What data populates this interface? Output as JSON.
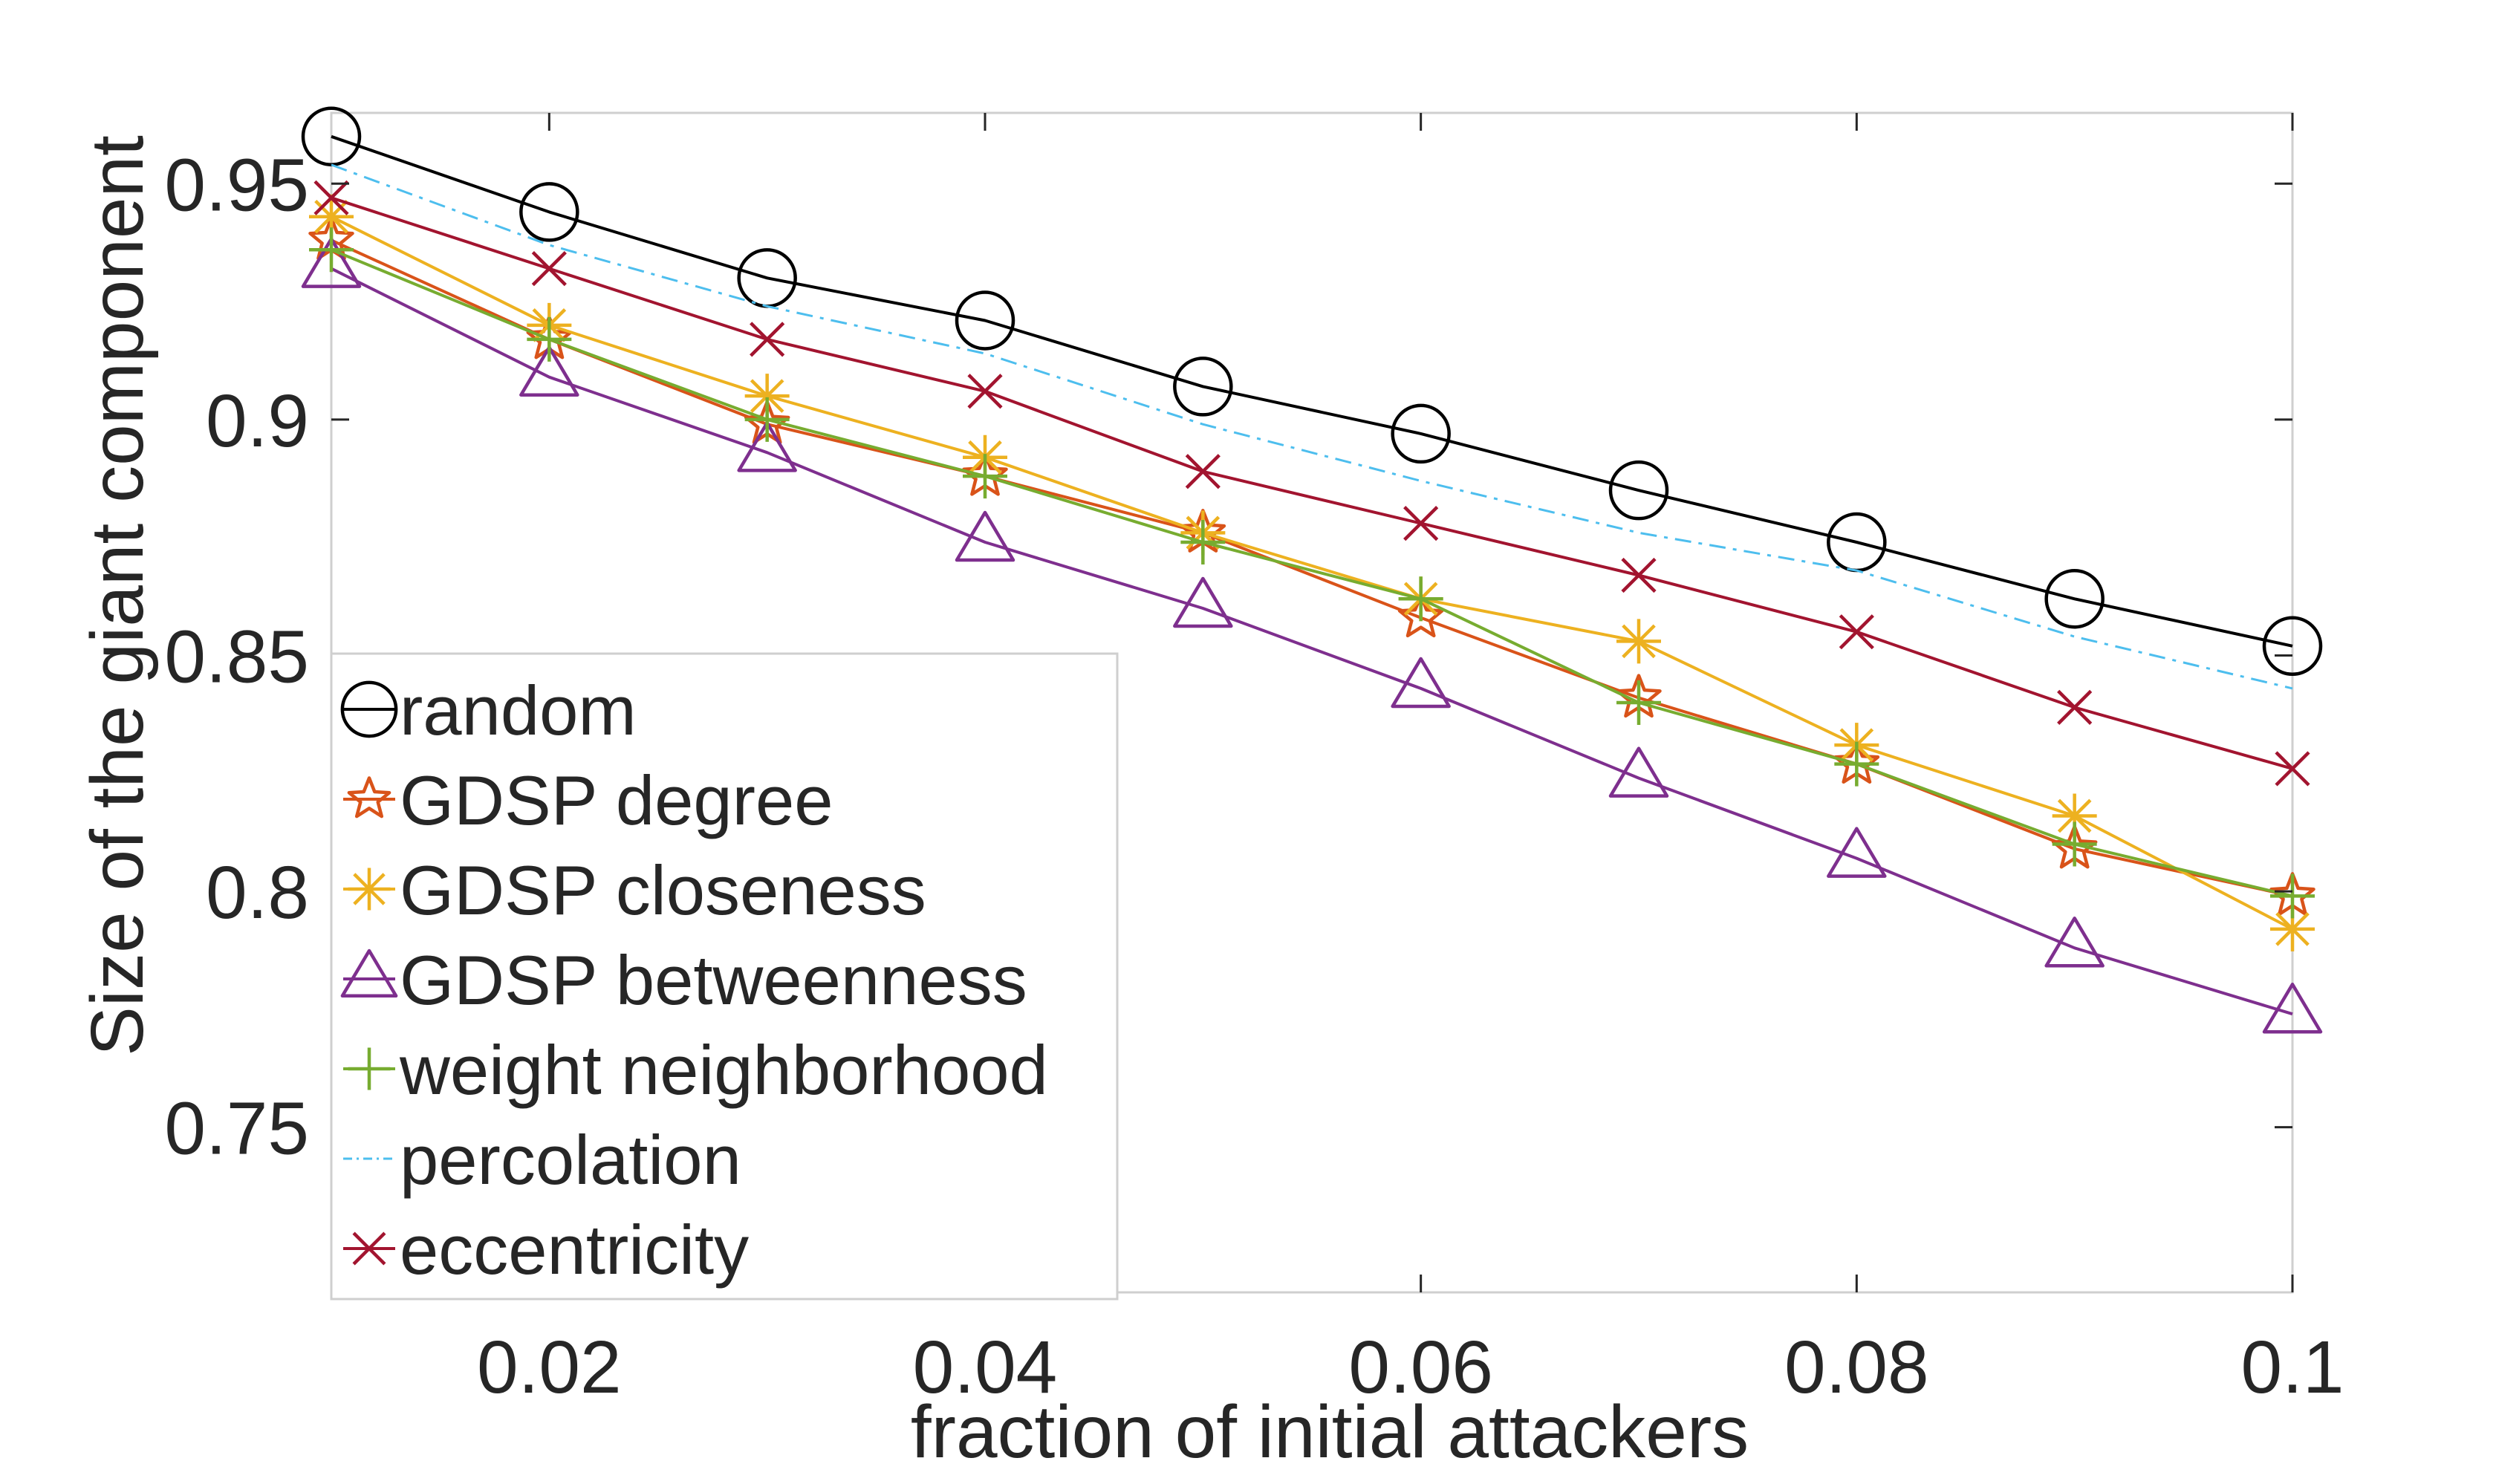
{
  "chart_data": {
    "type": "line",
    "xlabel": "fraction of initial attackers",
    "ylabel": "Size of the giant component",
    "xlim": [
      0.01,
      0.1
    ],
    "ylim": [
      0.715,
      0.965
    ],
    "x_ticks": [
      {
        "value": 0.02,
        "label": "0.02"
      },
      {
        "value": 0.04,
        "label": "0.04"
      },
      {
        "value": 0.06,
        "label": "0.06"
      },
      {
        "value": 0.08,
        "label": "0.08"
      },
      {
        "value": 0.1,
        "label": "0.1"
      }
    ],
    "y_ticks": [
      {
        "value": 0.75,
        "label": "0.75"
      },
      {
        "value": 0.8,
        "label": "0.8"
      },
      {
        "value": 0.85,
        "label": "0.85"
      },
      {
        "value": 0.9,
        "label": "0.9"
      },
      {
        "value": 0.95,
        "label": "0.95"
      }
    ],
    "x": [
      0.01,
      0.02,
      0.03,
      0.04,
      0.05,
      0.06,
      0.07,
      0.08,
      0.09,
      0.1
    ],
    "legend_position": "bottom-left",
    "grid": false,
    "series": [
      {
        "name": "random",
        "color": "#000000",
        "marker": "circle",
        "line": "solid",
        "values": [
          0.96,
          0.944,
          0.93,
          0.921,
          0.907,
          0.897,
          0.885,
          0.874,
          0.862,
          0.852
        ]
      },
      {
        "name": "GDSP degree",
        "color": "#D95319",
        "marker": "star",
        "line": "solid",
        "values": [
          0.938,
          0.917,
          0.899,
          0.888,
          0.876,
          0.858,
          0.841,
          0.827,
          0.809,
          0.799
        ]
      },
      {
        "name": "GDSP closeness",
        "color": "#EDB120",
        "marker": "asterisk",
        "line": "solid",
        "values": [
          0.943,
          0.92,
          0.905,
          0.892,
          0.876,
          0.862,
          0.853,
          0.831,
          0.816,
          0.792
        ]
      },
      {
        "name": "GDSP betweenness",
        "color": "#7E2F8E",
        "marker": "triangle",
        "line": "solid",
        "values": [
          0.932,
          0.909,
          0.893,
          0.874,
          0.86,
          0.843,
          0.824,
          0.807,
          0.788,
          0.774
        ]
      },
      {
        "name": "weight neighborhood",
        "color": "#77AC30",
        "marker": "plus",
        "line": "solid",
        "values": [
          0.936,
          0.917,
          0.9,
          0.888,
          0.874,
          0.862,
          0.84,
          0.827,
          0.81,
          0.799
        ]
      },
      {
        "name": "percolation",
        "color": "#4DBEEE",
        "marker": "none",
        "line": "dashdot",
        "values": [
          0.954,
          0.937,
          0.924,
          0.914,
          0.899,
          0.887,
          0.876,
          0.868,
          0.854,
          0.843
        ]
      },
      {
        "name": "eccentricity",
        "color": "#A2142F",
        "marker": "x",
        "line": "solid",
        "values": [
          0.947,
          0.932,
          0.917,
          0.906,
          0.889,
          0.878,
          0.867,
          0.855,
          0.839,
          0.826
        ]
      }
    ]
  }
}
